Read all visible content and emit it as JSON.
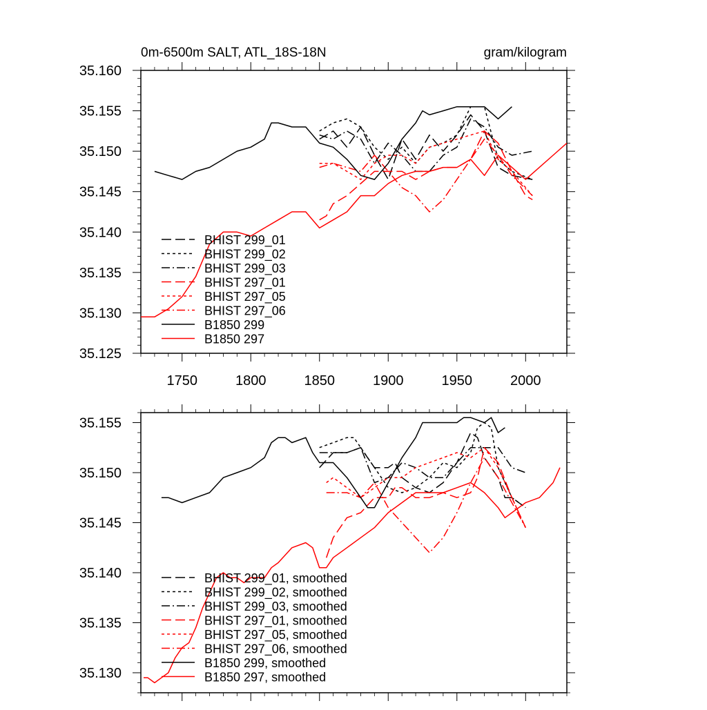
{
  "chart_data": [
    {
      "type": "line",
      "title_left": "0m-6500m SALT, ATL_18S-18N",
      "title_right": "gram/kilogram",
      "xlabel": "",
      "ylabel": "",
      "xlim": [
        1720,
        2030
      ],
      "ylim": [
        35.125,
        35.16
      ],
      "xticks": [
        1750,
        1800,
        1850,
        1900,
        1950,
        2000
      ],
      "xtick_labels": [
        "1750",
        "1800",
        "1850",
        "1900",
        "1950",
        "2000"
      ],
      "yticks": [
        35.125,
        35.13,
        35.135,
        35.14,
        35.145,
        35.15,
        35.155,
        35.16
      ],
      "ytick_labels": [
        "35.125",
        "35.130",
        "35.135",
        "35.140",
        "35.145",
        "35.150",
        "35.155",
        "35.160"
      ],
      "legend": [
        "BHIST 299_01",
        "BHIST 299_02",
        "BHIST 299_03",
        "BHIST 297_01",
        "BHIST 297_05",
        "BHIST 297_06",
        "B1850 299",
        "B1850 297"
      ],
      "series": [
        {
          "name": "BHIST 299_01",
          "color": "#000000",
          "dash": "long",
          "x": [
            1850,
            1860,
            1870,
            1880,
            1890,
            1900,
            1910,
            1920,
            1930,
            1940,
            1950,
            1960,
            1970,
            1980,
            1990,
            2005
          ],
          "y": [
            35.1515,
            35.1525,
            35.1505,
            35.153,
            35.1495,
            35.1465,
            35.1515,
            35.149,
            35.152,
            35.15,
            35.152,
            35.1545,
            35.1525,
            35.148,
            35.147,
            35.1465
          ]
        },
        {
          "name": "BHIST 299_02",
          "color": "#000000",
          "dash": "short",
          "x": [
            1850,
            1860,
            1870,
            1880,
            1890,
            1900,
            1910,
            1920,
            1930,
            1940,
            1950,
            1960,
            1970,
            1980,
            1990,
            2005
          ],
          "y": [
            35.1525,
            35.1535,
            35.154,
            35.153,
            35.1505,
            35.149,
            35.1505,
            35.1485,
            35.1505,
            35.151,
            35.152,
            35.1555,
            35.1555,
            35.149,
            35.1475,
            35.1465
          ]
        },
        {
          "name": "BHIST 299_03",
          "color": "#000000",
          "dash": "dashdot",
          "x": [
            1850,
            1860,
            1870,
            1880,
            1890,
            1900,
            1910,
            1920,
            1930,
            1940,
            1950,
            1960,
            1970,
            1980,
            1990,
            2005
          ],
          "y": [
            35.152,
            35.1515,
            35.1525,
            35.1515,
            35.1485,
            35.151,
            35.1495,
            35.1475,
            35.1475,
            35.1495,
            35.1505,
            35.154,
            35.153,
            35.1505,
            35.1495,
            35.15
          ]
        },
        {
          "name": "BHIST 297_01",
          "color": "#ff0000",
          "dash": "long",
          "x": [
            1850,
            1855,
            1860,
            1870,
            1880,
            1890,
            1900,
            1910,
            1920,
            1930,
            1940,
            1950,
            1960,
            1970,
            1980,
            1990,
            2000,
            2005
          ],
          "y": [
            35.1415,
            35.142,
            35.1435,
            35.1445,
            35.146,
            35.1475,
            35.1475,
            35.1475,
            35.1465,
            35.1475,
            35.148,
            35.148,
            35.149,
            35.1525,
            35.151,
            35.1475,
            35.1445,
            35.144
          ]
        },
        {
          "name": "BHIST 297_05",
          "color": "#ff0000",
          "dash": "short",
          "x": [
            1850,
            1860,
            1870,
            1880,
            1890,
            1900,
            1910,
            1920,
            1930,
            1940,
            1950,
            1960,
            1970,
            1980,
            1990,
            2005
          ],
          "y": [
            35.1485,
            35.1485,
            35.1475,
            35.1465,
            35.1485,
            35.1495,
            35.1495,
            35.1485,
            35.1505,
            35.151,
            35.1515,
            35.152,
            35.1525,
            35.149,
            35.1475,
            35.1445
          ]
        },
        {
          "name": "BHIST 297_06",
          "color": "#ff0000",
          "dash": "dashdot",
          "x": [
            1850,
            1860,
            1870,
            1880,
            1890,
            1900,
            1910,
            1920,
            1930,
            1940,
            1950,
            1960,
            1970,
            1980,
            1990,
            2005
          ],
          "y": [
            35.148,
            35.1485,
            35.148,
            35.1475,
            35.1495,
            35.1475,
            35.1455,
            35.1445,
            35.1425,
            35.144,
            35.1465,
            35.149,
            35.1515,
            35.1495,
            35.147,
            35.1445
          ]
        },
        {
          "name": "B1850 299",
          "color": "#000000",
          "dash": "solid",
          "x": [
            1730,
            1740,
            1750,
            1760,
            1770,
            1780,
            1790,
            1800,
            1810,
            1815,
            1820,
            1830,
            1840,
            1845,
            1850,
            1860,
            1870,
            1880,
            1890,
            1900,
            1910,
            1920,
            1925,
            1930,
            1940,
            1950,
            1960,
            1970,
            1980,
            1990
          ],
          "y": [
            35.1475,
            35.147,
            35.1465,
            35.1475,
            35.148,
            35.149,
            35.15,
            35.1505,
            35.1515,
            35.1535,
            35.1535,
            35.153,
            35.153,
            35.152,
            35.151,
            35.1505,
            35.149,
            35.147,
            35.1465,
            35.1485,
            35.1515,
            35.1535,
            35.155,
            35.1545,
            35.155,
            35.1555,
            35.1555,
            35.1555,
            35.154,
            35.1555
          ]
        },
        {
          "name": "B1850 297",
          "color": "#ff0000",
          "dash": "solid",
          "x": [
            1720,
            1730,
            1740,
            1750,
            1760,
            1770,
            1780,
            1790,
            1800,
            1810,
            1820,
            1830,
            1840,
            1850,
            1860,
            1870,
            1880,
            1890,
            1900,
            1910,
            1920,
            1930,
            1940,
            1950,
            1960,
            1970,
            1980,
            1990,
            2000,
            2010,
            2020,
            2030
          ],
          "y": [
            35.1295,
            35.1295,
            35.1305,
            35.132,
            35.1345,
            35.1385,
            35.14,
            35.14,
            35.1395,
            35.1405,
            35.1415,
            35.1425,
            35.1425,
            35.1405,
            35.1415,
            35.1425,
            35.1445,
            35.1445,
            35.146,
            35.147,
            35.1475,
            35.1475,
            35.148,
            35.148,
            35.149,
            35.147,
            35.1495,
            35.148,
            35.1465,
            35.148,
            35.1495,
            35.151
          ]
        }
      ]
    },
    {
      "type": "line",
      "xlim": [
        1720,
        2030
      ],
      "ylim": [
        35.128,
        35.156
      ],
      "xticks": [
        1750,
        1800,
        1850,
        1900,
        1950,
        2000
      ],
      "yticks": [
        35.13,
        35.135,
        35.14,
        35.145,
        35.15,
        35.155
      ],
      "ytick_labels": [
        "35.130",
        "35.135",
        "35.140",
        "35.145",
        "35.150",
        "35.155"
      ],
      "legend": [
        "BHIST 299_01, smoothed",
        "BHIST 299_02, smoothed",
        "BHIST 299_03, smoothed",
        "BHIST 297_01, smoothed",
        "BHIST 297_05, smoothed",
        "BHIST 297_06, smoothed",
        "B1850 299, smoothed",
        "B1850 297, smoothed"
      ],
      "series": [
        {
          "name": "BHIST 299_01, smoothed",
          "color": "#000000",
          "dash": "long",
          "x": [
            1850,
            1860,
            1870,
            1880,
            1885,
            1890,
            1900,
            1905,
            1910,
            1920,
            1930,
            1940,
            1950,
            1960,
            1965,
            1970,
            1980,
            1985,
            1990,
            2000
          ],
          "y": [
            35.1505,
            35.152,
            35.152,
            35.1525,
            35.1515,
            35.1505,
            35.1505,
            35.151,
            35.1495,
            35.1485,
            35.148,
            35.149,
            35.151,
            35.154,
            35.1535,
            35.1515,
            35.1495,
            35.1475,
            35.1475,
            35.1465
          ]
        },
        {
          "name": "BHIST 299_02, smoothed",
          "color": "#000000",
          "dash": "short",
          "x": [
            1850,
            1860,
            1870,
            1875,
            1880,
            1890,
            1900,
            1910,
            1920,
            1930,
            1940,
            1950,
            1960,
            1965,
            1970,
            1975,
            1980,
            1990,
            2000
          ],
          "y": [
            35.1525,
            35.153,
            35.1535,
            35.1535,
            35.1525,
            35.1505,
            35.1485,
            35.148,
            35.1485,
            35.1495,
            35.151,
            35.1505,
            35.152,
            35.1545,
            35.155,
            35.1545,
            35.1505,
            35.1475,
            35.1465
          ]
        },
        {
          "name": "BHIST 299_03, smoothed",
          "color": "#000000",
          "dash": "dashdot",
          "x": [
            1850,
            1860,
            1870,
            1880,
            1890,
            1900,
            1910,
            1920,
            1930,
            1940,
            1950,
            1960,
            1970,
            1980,
            1990,
            2000
          ],
          "y": [
            35.152,
            35.152,
            35.152,
            35.1525,
            35.149,
            35.1495,
            35.151,
            35.1505,
            35.1495,
            35.1495,
            35.151,
            35.1525,
            35.1525,
            35.1525,
            35.1505,
            35.15
          ]
        },
        {
          "name": "BHIST 297_01, smoothed",
          "color": "#ff0000",
          "dash": "long",
          "x": [
            1855,
            1860,
            1870,
            1880,
            1890,
            1900,
            1905,
            1910,
            1920,
            1930,
            1940,
            1950,
            1960,
            1965,
            1970,
            1980,
            1990,
            2000
          ],
          "y": [
            35.1415,
            35.1435,
            35.1455,
            35.146,
            35.1475,
            35.1475,
            35.1485,
            35.1485,
            35.1475,
            35.1475,
            35.148,
            35.1475,
            35.148,
            35.1495,
            35.1525,
            35.151,
            35.1475,
            35.1445
          ]
        },
        {
          "name": "BHIST 297_05, smoothed",
          "color": "#ff0000",
          "dash": "short",
          "x": [
            1855,
            1860,
            1870,
            1880,
            1890,
            1900,
            1910,
            1920,
            1930,
            1940,
            1950,
            1960,
            1970,
            1980,
            1990,
            2000
          ],
          "y": [
            35.149,
            35.1495,
            35.1485,
            35.1475,
            35.1485,
            35.1495,
            35.1495,
            35.1505,
            35.151,
            35.1515,
            35.152,
            35.1515,
            35.1525,
            35.1505,
            35.1475,
            35.1445
          ]
        },
        {
          "name": "BHIST 297_06, smoothed",
          "color": "#ff0000",
          "dash": "dashdot",
          "x": [
            1855,
            1860,
            1870,
            1880,
            1890,
            1900,
            1910,
            1920,
            1930,
            1940,
            1950,
            1960,
            1970,
            1980,
            1990,
            2000
          ],
          "y": [
            35.148,
            35.148,
            35.148,
            35.1475,
            35.149,
            35.1465,
            35.145,
            35.1435,
            35.142,
            35.1435,
            35.146,
            35.149,
            35.1515,
            35.1495,
            35.147,
            35.1445
          ]
        },
        {
          "name": "B1850 299, smoothed",
          "color": "#000000",
          "dash": "solid",
          "x": [
            1735,
            1740,
            1750,
            1760,
            1770,
            1780,
            1790,
            1800,
            1810,
            1815,
            1820,
            1825,
            1830,
            1840,
            1845,
            1850,
            1860,
            1870,
            1880,
            1885,
            1890,
            1900,
            1910,
            1920,
            1925,
            1930,
            1940,
            1950,
            1955,
            1960,
            1970,
            1975,
            1980,
            1985
          ],
          "y": [
            35.1475,
            35.1475,
            35.147,
            35.1475,
            35.148,
            35.1495,
            35.15,
            35.1505,
            35.1515,
            35.153,
            35.1535,
            35.1535,
            35.153,
            35.1535,
            35.152,
            35.151,
            35.151,
            35.1495,
            35.1475,
            35.1465,
            35.1465,
            35.149,
            35.1515,
            35.1535,
            35.155,
            35.155,
            35.155,
            35.155,
            35.1555,
            35.1555,
            35.155,
            35.1555,
            35.154,
            35.1545
          ]
        },
        {
          "name": "B1850 297, smoothed",
          "color": "#ff0000",
          "dash": "solid",
          "x": [
            1722,
            1725,
            1730,
            1735,
            1740,
            1745,
            1750,
            1755,
            1760,
            1765,
            1770,
            1775,
            1780,
            1785,
            1790,
            1795,
            1800,
            1805,
            1810,
            1815,
            1820,
            1830,
            1840,
            1845,
            1850,
            1855,
            1860,
            1870,
            1880,
            1890,
            1900,
            1910,
            1920,
            1930,
            1940,
            1950,
            1960,
            1970,
            1980,
            1985,
            1990,
            2000,
            2010,
            2020,
            2025
          ],
          "y": [
            35.1295,
            35.1295,
            35.129,
            35.1295,
            35.13,
            35.1315,
            35.1325,
            35.133,
            35.1345,
            35.1365,
            35.138,
            35.1395,
            35.14,
            35.1395,
            35.1395,
            35.139,
            35.1395,
            35.1395,
            35.1395,
            35.1405,
            35.141,
            35.1425,
            35.143,
            35.1425,
            35.1405,
            35.1405,
            35.1415,
            35.1425,
            35.1435,
            35.1445,
            35.146,
            35.147,
            35.148,
            35.148,
            35.148,
            35.1485,
            35.149,
            35.148,
            35.1465,
            35.1455,
            35.146,
            35.147,
            35.1475,
            35.149,
            35.1505
          ]
        }
      ]
    }
  ]
}
